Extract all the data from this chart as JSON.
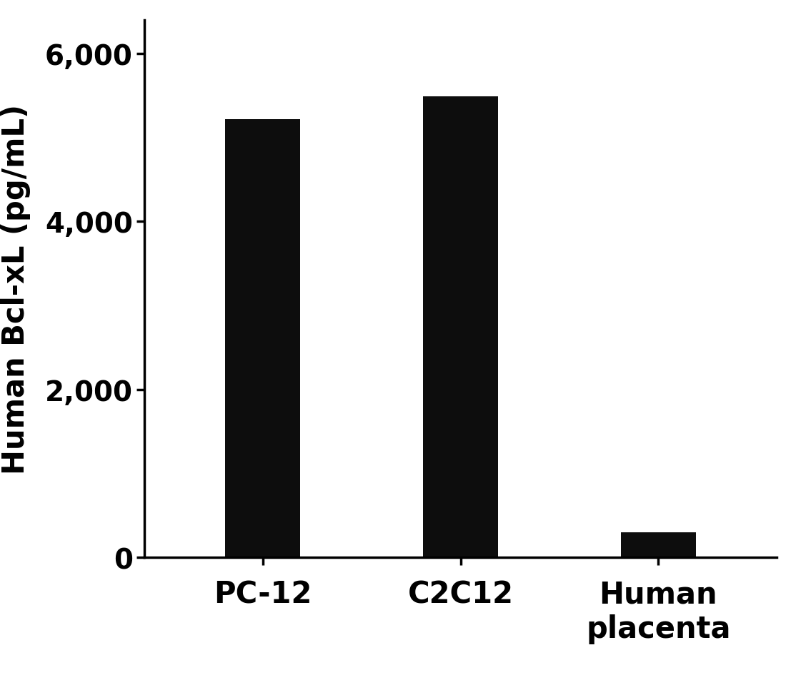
{
  "categories": [
    "PC-12",
    "C2C12",
    "Human\nplacenta"
  ],
  "values": [
    5217.7,
    5486.2,
    303.5
  ],
  "bar_color": "#0d0d0d",
  "ylabel": "Human Bcl-xL (pg/mL)",
  "ylim": [
    0,
    6400
  ],
  "yticks": [
    0,
    2000,
    4000,
    6000
  ],
  "bar_width": 0.38,
  "background_color": "#ffffff",
  "ylabel_fontsize": 30,
  "tick_fontsize": 28,
  "xtick_fontsize": 30,
  "spine_linewidth": 2.5
}
